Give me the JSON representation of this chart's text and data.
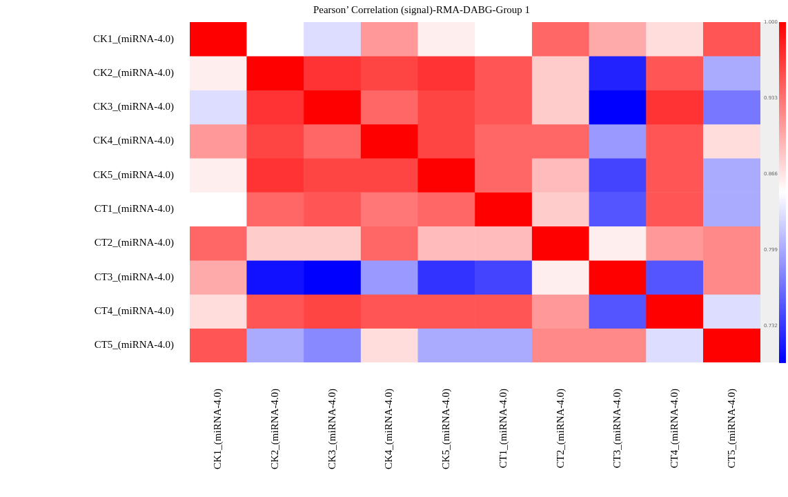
{
  "chart_data": {
    "type": "heatmap",
    "title": "Pearson’ Correlation (signal)-RMA-DABG-Group 1",
    "categories": [
      "CK1_(miRNA-4.0)",
      "CK2_(miRNA-4.0)",
      "CK3_(miRNA-4.0)",
      "CK4_(miRNA-4.0)",
      "CK5_(miRNA-4.0)",
      "CT1_(miRNA-4.0)",
      "CT2_(miRNA-4.0)",
      "CT3_(miRNA-4.0)",
      "CT4_(miRNA-4.0)",
      "CT5_(miRNA-4.0)"
    ],
    "y_categories": [
      "CK1_(miRNA-4.0)",
      "CK2_(miRNA-4.0)",
      "CK3_(miRNA-4.0)",
      "CK4_(miRNA-4.0)",
      "CK5_(miRNA-4.0)",
      "CT1_(miRNA-4.0)",
      "CT2_(miRNA-4.0)",
      "CT3_(miRNA-4.0)",
      "CT4_(miRNA-4.0)",
      "CT5_(miRNA-4.0)"
    ],
    "cells": [
      [
        1,
        0.85,
        0.83,
        0.91,
        0.86,
        0.85,
        0.94,
        0.9,
        0.87,
        0.95
      ],
      [
        0.86,
        1,
        0.97,
        0.96,
        0.97,
        0.95,
        0.88,
        0.72,
        0.95,
        0.8
      ],
      [
        0.83,
        0.97,
        1,
        0.94,
        0.96,
        0.95,
        0.88,
        0.7,
        0.97,
        0.77
      ],
      [
        0.91,
        0.96,
        0.94,
        1,
        0.96,
        0.94,
        0.94,
        0.79,
        0.95,
        0.87
      ],
      [
        0.86,
        0.97,
        0.96,
        0.96,
        1,
        0.94,
        0.89,
        0.74,
        0.95,
        0.8
      ],
      [
        0.85,
        0.94,
        0.95,
        0.93,
        0.94,
        1,
        0.88,
        0.75,
        0.95,
        0.8
      ],
      [
        0.94,
        0.88,
        0.88,
        0.94,
        0.89,
        0.89,
        1,
        0.86,
        0.91,
        0.92
      ],
      [
        0.9,
        0.71,
        0.7,
        0.79,
        0.73,
        0.74,
        0.86,
        1,
        0.75,
        0.92
      ],
      [
        0.87,
        0.95,
        0.96,
        0.95,
        0.95,
        0.95,
        0.91,
        0.75,
        1,
        0.83
      ],
      [
        0.95,
        0.8,
        0.78,
        0.87,
        0.8,
        0.8,
        0.92,
        0.92,
        0.83,
        1
      ]
    ],
    "clim": [
      0.7,
      1
    ],
    "cticks": [
      {
        "value": 1,
        "label": "1.000"
      },
      {
        "value": 0.933,
        "label": "0.933"
      },
      {
        "value": 0.866,
        "label": "0.866"
      },
      {
        "value": 0.799,
        "label": "0.799"
      },
      {
        "value": 0.732,
        "label": "0.732"
      }
    ]
  }
}
